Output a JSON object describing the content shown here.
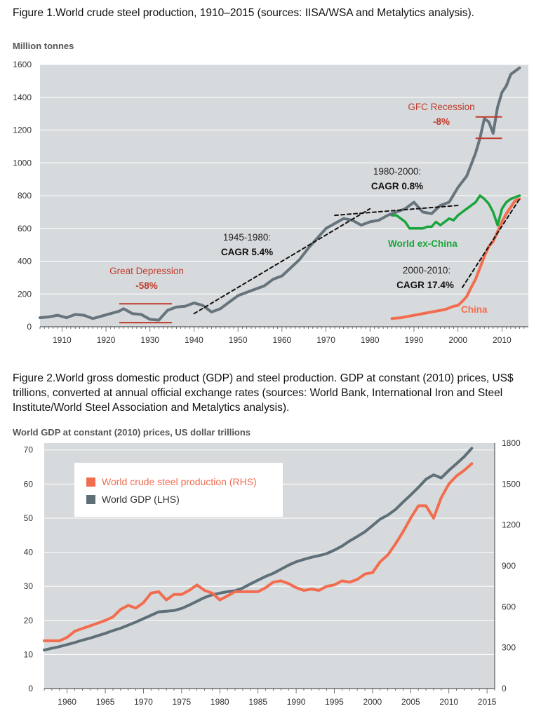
{
  "figure1": {
    "caption": "Figure 1.World crude steel production, 1910–2015 (sources: IISA/WSA and Metalytics analysis).",
    "unit_label": "Million tonnes",
    "colors": {
      "world": "#66747d",
      "china": "#f26d4f",
      "ex_china": "#1aa43c",
      "red_annot": "#c0392b",
      "bg": "#d7dadc"
    },
    "annotations": {
      "gfc_title": "GFC Recession",
      "gfc_value": "-8%",
      "cagr1980_title": "1980-2000:",
      "cagr1980_value": "CAGR 0.8%",
      "cagr1945_title": "1945-1980:",
      "cagr1945_value": "CAGR 5.4%",
      "gd_title": "Great Depression",
      "gd_value": "-58%",
      "cagr2000_title": "2000-2010:",
      "cagr2000_value": "CAGR 17.4%",
      "world_ex_china": "World ex-China",
      "china": "China"
    }
  },
  "figure2": {
    "caption": "Figure 2.World gross domestic product (GDP) and steel production. GDP at constant (2010) prices, US$ trillions, converted at annual official exchange rates (sources: World Bank, International Iron and Steel Institute/World Steel Association and Metalytics analysis).",
    "unit_label": "World GDP at constant (2010) prices, US dollar trillions",
    "colors": {
      "steel": "#f26d4f",
      "gdp": "#5f6f78",
      "bg": "#d7dadc"
    },
    "legend": {
      "steel": "World crude steel production (RHS)",
      "gdp": "World GDP (LHS)"
    }
  },
  "chart_data": [
    {
      "type": "line",
      "xlim": [
        1905,
        2016
      ],
      "ylim": [
        0,
        1600
      ],
      "x_ticks": [
        1910,
        1920,
        1930,
        1940,
        1950,
        1960,
        1970,
        1980,
        1990,
        2000,
        2010
      ],
      "y_ticks": [
        0,
        200,
        400,
        600,
        800,
        1000,
        1200,
        1400,
        1600
      ],
      "grid": true,
      "series": [
        {
          "key": "world",
          "x": [
            1905,
            1907,
            1909,
            1911,
            1913,
            1915,
            1917,
            1919,
            1921,
            1923,
            1924,
            1926,
            1928,
            1930,
            1932,
            1934,
            1936,
            1938,
            1940,
            1942,
            1944,
            1946,
            1948,
            1950,
            1952,
            1954,
            1956,
            1958,
            1960,
            1962,
            1964,
            1966,
            1968,
            1970,
            1972,
            1974,
            1976,
            1978,
            1980,
            1982,
            1984,
            1986,
            1988,
            1990,
            1992,
            1994,
            1996,
            1998,
            2000,
            2002,
            2004,
            2005,
            2006,
            2007,
            2008,
            2009,
            2010,
            2011,
            2012,
            2013,
            2014
          ],
          "y": [
            55,
            60,
            70,
            55,
            75,
            70,
            50,
            65,
            80,
            95,
            110,
            80,
            75,
            45,
            40,
            100,
            120,
            125,
            145,
            130,
            90,
            110,
            150,
            190,
            210,
            230,
            250,
            290,
            310,
            360,
            410,
            480,
            540,
            600,
            630,
            660,
            650,
            620,
            640,
            650,
            680,
            700,
            720,
            760,
            700,
            690,
            740,
            760,
            850,
            920,
            1060,
            1150,
            1270,
            1250,
            1180,
            1340,
            1430,
            1470,
            1540,
            1560,
            1580
          ]
        },
        {
          "name": "World ex-China",
          "key": "ex_china",
          "x": [
            1985,
            1986,
            1987,
            1988,
            1989,
            1990,
            1991,
            1992,
            1993,
            1994,
            1995,
            1996,
            1997,
            1998,
            1999,
            2000,
            2001,
            2002,
            2003,
            2004,
            2005,
            2006,
            2007,
            2008,
            2009,
            2010,
            2011,
            2012,
            2013,
            2014
          ],
          "y": [
            680,
            680,
            660,
            640,
            600,
            600,
            600,
            600,
            610,
            610,
            640,
            620,
            640,
            660,
            650,
            680,
            700,
            720,
            740,
            760,
            800,
            780,
            750,
            700,
            620,
            720,
            760,
            780,
            790,
            800
          ]
        },
        {
          "name": "China",
          "key": "china",
          "x": [
            1985,
            1987,
            1989,
            1991,
            1993,
            1995,
            1997,
            1999,
            2000,
            2001,
            2002,
            2003,
            2004,
            2005,
            2006,
            2007,
            2008,
            2009,
            2010,
            2011,
            2012,
            2013,
            2014
          ],
          "y": [
            50,
            55,
            65,
            75,
            85,
            95,
            105,
            125,
            130,
            155,
            185,
            240,
            290,
            360,
            430,
            490,
            520,
            580,
            640,
            690,
            730,
            770,
            780
          ]
        },
        {
          "key": "trend_1945_1980",
          "style": "dashed",
          "x": [
            1940,
            1980
          ],
          "y": [
            80,
            720
          ]
        },
        {
          "key": "trend_1980_2000",
          "style": "dashed",
          "x": [
            1972,
            2000
          ],
          "y": [
            680,
            740
          ]
        },
        {
          "key": "trend_2000_2010",
          "style": "dashed",
          "x": [
            2001,
            2014
          ],
          "y": [
            240,
            780
          ]
        }
      ]
    },
    {
      "type": "line",
      "xlim": [
        1957,
        2016
      ],
      "ylim": [
        0,
        72
      ],
      "ylim_right": [
        0,
        1800
      ],
      "x_ticks": [
        1960,
        1965,
        1970,
        1975,
        1980,
        1985,
        1990,
        1995,
        2000,
        2005,
        2010,
        2015
      ],
      "y_ticks_left": [
        0,
        10,
        20,
        30,
        40,
        50,
        60,
        70
      ],
      "y_ticks_right": [
        0,
        300,
        600,
        900,
        1200,
        1500,
        1800
      ],
      "grid": true,
      "series": [
        {
          "name": "World GDP (LHS)",
          "key": "gdp",
          "axis": "left",
          "x": [
            1957,
            1958,
            1959,
            1960,
            1961,
            1962,
            1963,
            1964,
            1965,
            1966,
            1967,
            1968,
            1969,
            1970,
            1971,
            1972,
            1973,
            1974,
            1975,
            1976,
            1977,
            1978,
            1979,
            1980,
            1981,
            1982,
            1983,
            1984,
            1985,
            1986,
            1987,
            1988,
            1989,
            1990,
            1991,
            1992,
            1993,
            1994,
            1995,
            1996,
            1997,
            1998,
            1999,
            2000,
            2001,
            2002,
            2003,
            2004,
            2005,
            2006,
            2007,
            2008,
            2009,
            2010,
            2011,
            2012,
            2013
          ],
          "y": [
            11.3,
            11.8,
            12.3,
            12.9,
            13.5,
            14.2,
            14.8,
            15.5,
            16.2,
            17.0,
            17.7,
            18.6,
            19.5,
            20.5,
            21.5,
            22.5,
            22.7,
            22.9,
            23.5,
            24.5,
            25.6,
            26.7,
            27.5,
            28.0,
            28.4,
            28.7,
            29.5,
            30.7,
            31.8,
            32.9,
            33.8,
            35.0,
            36.2,
            37.2,
            37.9,
            38.5,
            39.0,
            39.6,
            40.6,
            41.8,
            43.3,
            44.6,
            46.0,
            47.8,
            49.7,
            50.9,
            52.5,
            54.7,
            56.8,
            59.0,
            61.4,
            62.7,
            61.8,
            64.0,
            66.0,
            68.0,
            70.5
          ]
        },
        {
          "name": "World crude steel production (RHS)",
          "key": "steel",
          "axis": "right",
          "x": [
            1957,
            1958,
            1959,
            1960,
            1961,
            1962,
            1963,
            1964,
            1965,
            1966,
            1967,
            1968,
            1969,
            1970,
            1971,
            1972,
            1973,
            1974,
            1975,
            1976,
            1977,
            1978,
            1979,
            1980,
            1981,
            1982,
            1983,
            1984,
            1985,
            1986,
            1987,
            1988,
            1989,
            1990,
            1991,
            1992,
            1993,
            1994,
            1995,
            1996,
            1997,
            1998,
            1999,
            2000,
            2001,
            2002,
            2003,
            2004,
            2005,
            2006,
            2007,
            2008,
            2009,
            2010,
            2011,
            2012,
            2013
          ],
          "y": [
            350,
            350,
            350,
            375,
            420,
            440,
            460,
            480,
            500,
            525,
            580,
            610,
            590,
            630,
            700,
            710,
            650,
            690,
            690,
            720,
            760,
            720,
            700,
            650,
            680,
            710,
            710,
            710,
            710,
            740,
            780,
            790,
            770,
            740,
            720,
            730,
            720,
            750,
            760,
            790,
            780,
            800,
            840,
            850,
            930,
            980,
            1060,
            1150,
            1250,
            1340,
            1340,
            1250,
            1400,
            1500,
            1560,
            1600,
            1650
          ]
        }
      ]
    }
  ]
}
